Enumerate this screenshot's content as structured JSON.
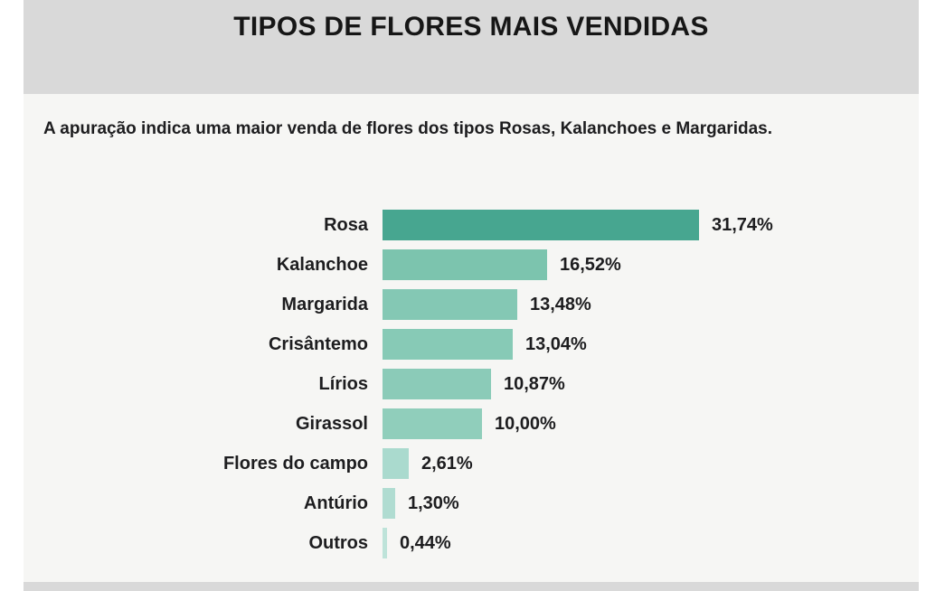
{
  "header": {
    "title": "TIPOS DE FLORES MAIS VENDIDAS"
  },
  "subtitle": "A apuração indica uma maior venda de flores dos tipos Rosas, Kalanchoes e Margaridas.",
  "chart_data": {
    "type": "bar",
    "orientation": "horizontal",
    "title": "TIPOS DE FLORES MAIS VENDIDAS",
    "categories": [
      "Rosa",
      "Kalanchoe",
      "Margarida",
      "Crisântemo",
      "Lírios",
      "Girassol",
      "Flores do campo",
      "Antúrio",
      "Outros"
    ],
    "values": [
      31.74,
      16.52,
      13.48,
      13.04,
      10.87,
      10.0,
      2.61,
      1.3,
      0.44
    ],
    "value_labels": [
      "31,74%",
      "16,52%",
      "13,48%",
      "13,04%",
      "10,87%",
      "10,00%",
      "2,61%",
      "1,30%",
      "0,44%"
    ],
    "bar_colors": [
      "#47a690",
      "#7cc4ae",
      "#84c8b4",
      "#87cab6",
      "#8bcbb8",
      "#90cebb",
      "#aadace",
      "#b0dcd1",
      "#bee3d9"
    ],
    "xlabel": "",
    "ylabel": "",
    "xlim": [
      0,
      33
    ],
    "grid": false,
    "legend": false,
    "data_labels": "outside-end"
  },
  "colors": {
    "header_band": "#d9d9d9",
    "body_bg": "#f6f6f4",
    "text": "#1d1d1f"
  }
}
